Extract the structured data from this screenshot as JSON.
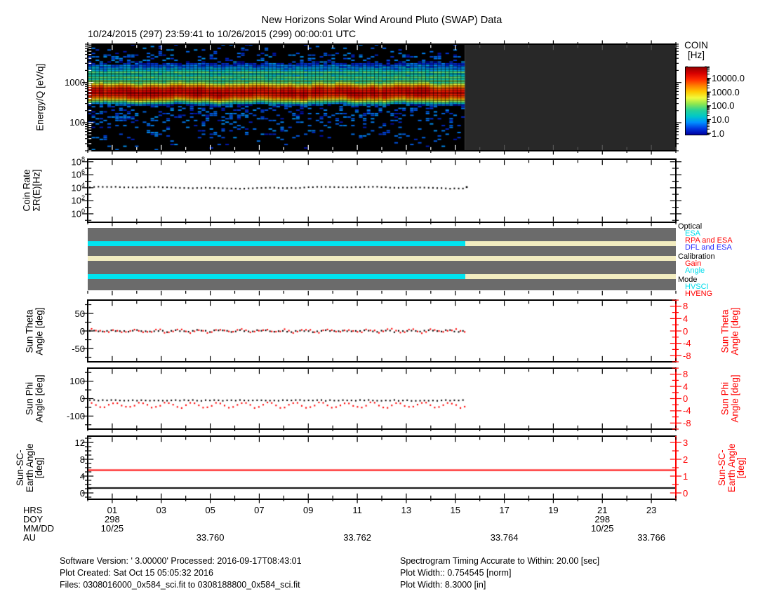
{
  "title": "New Horizons Solar Wind Around Pluto (SWAP) Data",
  "subtitle": "10/24/2015 (297) 23:59:41 to 10/26/2015 (299) 00:00:01 UTC",
  "colorbar": {
    "title_lines": [
      "COIN",
      "[Hz]"
    ],
    "tick_labels": [
      "10000.0",
      "1000.0",
      "100.0",
      "10.0",
      "1.0"
    ],
    "tick_exponents": [
      4,
      3,
      2,
      1,
      0
    ],
    "gradient": [
      "#960000",
      "#D80000",
      "#FF2A00",
      "#FF7E00",
      "#FFC800",
      "#F0FA3C",
      "#8CE650",
      "#28D296",
      "#00C8C8",
      "#0090FF",
      "#0038E1",
      "#0000A0"
    ],
    "range_hz": [
      1,
      30000
    ]
  },
  "status_legend": {
    "groups": [
      {
        "label": "Optical",
        "items": [
          {
            "label": "ESA",
            "color": "#00DCEB"
          },
          {
            "label": "RPA and ESA",
            "color": "#FF0000"
          },
          {
            "label": "DFL and ESA",
            "color": "#2A2AFF"
          }
        ]
      },
      {
        "label": "Calibration",
        "items": [
          {
            "label": "Gain",
            "color": "#FF0000"
          },
          {
            "label": "Angle",
            "color": "#00DCEB"
          }
        ]
      },
      {
        "label": "Mode",
        "items": [
          {
            "label": "HVSCI",
            "color": "#00DCEB"
          },
          {
            "label": "HVENG",
            "color": "#FF0000"
          }
        ]
      }
    ]
  },
  "xaxis": {
    "row_labels": [
      "HRS",
      "DOY",
      "MM/DD",
      "AU"
    ],
    "hour_ticks": [
      {
        "hour": 1,
        "label": "01"
      },
      {
        "hour": 3,
        "label": "03"
      },
      {
        "hour": 5,
        "label": "05"
      },
      {
        "hour": 7,
        "label": "07"
      },
      {
        "hour": 9,
        "label": "09"
      },
      {
        "hour": 11,
        "label": "11"
      },
      {
        "hour": 13,
        "label": "13"
      },
      {
        "hour": 15,
        "label": "15"
      },
      {
        "hour": 17,
        "label": "17"
      },
      {
        "hour": 19,
        "label": "19"
      },
      {
        "hour": 21,
        "label": "21"
      },
      {
        "hour": 23,
        "label": "23"
      }
    ],
    "doy": [
      {
        "hour": 1,
        "label": "298"
      },
      {
        "hour": 21,
        "label": "298"
      }
    ],
    "mmdd": [
      {
        "hour": 1,
        "label": "10/25"
      },
      {
        "hour": 21,
        "label": "10/25"
      }
    ],
    "au": [
      {
        "hour": 5,
        "label": "33.760"
      },
      {
        "hour": 11,
        "label": "33.762"
      },
      {
        "hour": 17,
        "label": "33.764"
      },
      {
        "hour": 23,
        "label": "33.766"
      }
    ]
  },
  "footer": {
    "left": [
      "Software Version:  ' 3.00000'  Processed: 2016-09-17T08:43:01",
      "Plot Created: Sat Oct 15 05:05:32 2016",
      "Files: 0308016000_0x584_sci.fit to 0308188800_0x584_sci.fit"
    ],
    "right": [
      "Spectrogram Timing Accurate to Within: 20.00 [sec]",
      "Plot Width:: 0.754545 [norm]",
      "Plot Width: 8.3000 [in]"
    ]
  },
  "chart_data": [
    {
      "id": "energy_spectrogram",
      "type": "heatmap",
      "ylabel": "Energy/Q [eV/q]",
      "yscale": "log",
      "ylim": [
        20,
        9000
      ],
      "ytick_labels": [
        {
          "value": 1000,
          "label": "1000"
        },
        {
          "value": 100,
          "label": "100"
        }
      ],
      "xlim_hours": [
        0,
        24
      ],
      "data_end_hour": 15.4,
      "beam": {
        "center_ev": 560,
        "sigma_log": 0.075,
        "peak_hz": 9000
      },
      "secondary_band": {
        "center_ev": 1300,
        "sigma_log": 0.15,
        "peak_hz": 30
      },
      "streak_lines_ev": [
        1050,
        1350,
        1750
      ],
      "background_noise_hz": [
        1.2,
        7
      ],
      "nodata_color": "#282828"
    },
    {
      "id": "coin_rate",
      "type": "scatter",
      "ylabel_lines": [
        "Coin Rate",
        "ΣR(E)[Hz]"
      ],
      "yscale": "log",
      "ylim_exponents": [
        -1.3,
        8.4
      ],
      "ytick_exponents": [
        8,
        6,
        4,
        2,
        0
      ],
      "mean_value_hz": 10000,
      "data_end_hour": 15.4,
      "marker_color": "#000000"
    },
    {
      "id": "instrument_status",
      "type": "status-bars",
      "background": "#6B6B6B",
      "rows": [
        {
          "name": "optical",
          "segments": [
            {
              "from_hour": 0,
              "to_hour": 15.4,
              "color": "#00E4F0"
            },
            {
              "from_hour": 15.4,
              "to_hour": 24,
              "color": "#F2ECC0"
            }
          ]
        },
        {
          "name": "calibration",
          "segments": [
            {
              "from_hour": 0,
              "to_hour": 24,
              "color": "#F2ECC0"
            }
          ]
        },
        {
          "name": "mode",
          "segments": [
            {
              "from_hour": 0,
              "to_hour": 15.4,
              "color": "#00E4F0"
            },
            {
              "from_hour": 15.4,
              "to_hour": 24,
              "color": "#F2ECC0"
            }
          ]
        }
      ]
    },
    {
      "id": "sun_theta",
      "type": "scatter",
      "left": {
        "label_lines": [
          "Sun Theta",
          "Angle [deg]"
        ],
        "ylim": [
          -88,
          88
        ],
        "yticks": [
          50,
          0,
          -50
        ]
      },
      "right": {
        "label_lines": [
          "Sun Theta",
          "Angle [deg]"
        ],
        "ylim": [
          -10,
          10
        ],
        "yticks": [
          8,
          4,
          0,
          -4,
          -8
        ],
        "color": "#FF0000"
      },
      "series": [
        {
          "name": "theta_black",
          "color": "#000000",
          "scale": "left",
          "mean": 0,
          "spread": 4
        },
        {
          "name": "theta_red",
          "color": "#FF0000",
          "scale": "right",
          "mean": 0,
          "spread": 0.6
        }
      ],
      "data_end_hour": 15.4
    },
    {
      "id": "sun_phi",
      "type": "scatter",
      "left": {
        "label_lines": [
          "Sun Phi",
          "Angle [deg]"
        ],
        "ylim": [
          -175,
          175
        ],
        "yticks": [
          100,
          0,
          -100
        ]
      },
      "right": {
        "label_lines": [
          "Sun Phi",
          "Angle [deg]"
        ],
        "ylim": [
          -10,
          10
        ],
        "yticks": [
          8,
          4,
          0,
          -4,
          -8
        ],
        "color": "#FF0000"
      },
      "series": [
        {
          "name": "phi_black",
          "color": "#000000",
          "scale": "left",
          "mean": -10,
          "spread": 5
        },
        {
          "name": "phi_red",
          "color": "#FF0000",
          "scale": "right",
          "mean": -2.15,
          "wave_amp": 0.8,
          "spread": 0.45
        }
      ],
      "data_end_hour": 15.4
    },
    {
      "id": "sun_sc_earth",
      "type": "line",
      "left": {
        "label_lines": [
          "Sun-SC-",
          "Earth Angle",
          "[deg]"
        ],
        "ylim": [
          -1.5,
          13.5
        ],
        "yticks": [
          12,
          8,
          4,
          0
        ]
      },
      "right": {
        "label_lines": [
          "Sun-SC-",
          "Earth Angle",
          "[deg]"
        ],
        "ylim": [
          -0.375,
          3.375
        ],
        "yticks": [
          3,
          2,
          1,
          0
        ],
        "color": "#FF0000"
      },
      "lines": [
        {
          "name": "earth_angle_red",
          "color": "#FF0000",
          "value_left_scale": 5.4
        },
        {
          "name": "earth_angle_black",
          "color": "#000000",
          "value_left_scale": 1.15
        }
      ]
    }
  ]
}
